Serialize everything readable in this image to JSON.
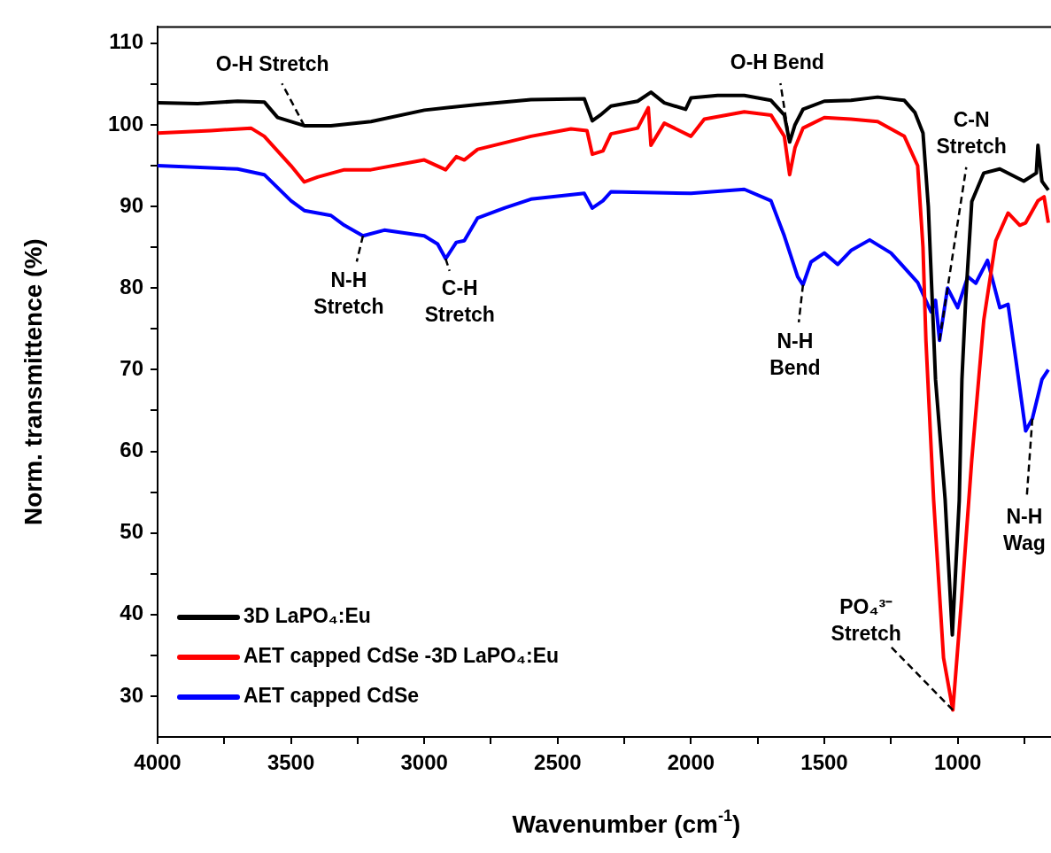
{
  "chart_data": {
    "type": "line",
    "xlabel": "Wavenumber (cm$^{-1}$)",
    "ylabel": "Norm. transmittence (%)",
    "xlim": [
      4000,
      650
    ],
    "xticks": [
      4000,
      {
        "value": 3750,
        "label": null
      },
      3500,
      {
        "value": 3250,
        "label": null
      },
      3000,
      {
        "value": 2750,
        "label": null
      },
      2500,
      {
        "value": 2250,
        "label": null
      },
      2000,
      {
        "value": 1750,
        "label": null
      },
      1500,
      {
        "value": 1250,
        "label": null
      },
      1000,
      {
        "value": 750,
        "label": null
      }
    ],
    "ylim": [
      25,
      112
    ],
    "yticks": [
      30,
      {
        "value": 35,
        "label": null
      },
      40,
      {
        "value": 45,
        "label": null
      },
      50,
      {
        "value": 55,
        "label": null
      },
      60,
      {
        "value": 65,
        "label": null
      },
      70,
      {
        "value": 75,
        "label": null
      },
      80,
      {
        "value": 85,
        "label": null
      },
      90,
      {
        "value": 95,
        "label": null
      },
      100,
      {
        "value": 105,
        "label": null
      },
      110
    ],
    "grid": false,
    "legend": "bottom left",
    "marker": "none",
    "line_style": "solid",
    "series": [
      {
        "name": "3D LaPO₄:Eu",
        "color": "#000000",
        "x": [
          4000,
          3850,
          3700,
          3600,
          3550,
          3450,
          3350,
          3200,
          3000,
          2800,
          2600,
          2400,
          2370,
          2340,
          2300,
          2200,
          2150,
          2100,
          2020,
          2000,
          1900,
          1800,
          1700,
          1650,
          1630,
          1610,
          1580,
          1500,
          1400,
          1300,
          1200,
          1160,
          1130,
          1110,
          1083,
          1047,
          1020,
          994,
          984,
          970,
          947,
          902,
          842,
          752,
          705,
          699,
          684,
          660
        ],
        "values": [
          102.7,
          102.6,
          102.9,
          102.8,
          100.9,
          99.9,
          99.9,
          100.4,
          101.8,
          102.5,
          103.1,
          103.2,
          100.5,
          101.2,
          102.3,
          102.9,
          104,
          102.7,
          101.9,
          103.3,
          103.6,
          103.6,
          103,
          101.2,
          97.9,
          100,
          101.9,
          102.9,
          103,
          103.4,
          103,
          101.5,
          99,
          90,
          68.8,
          54.1,
          37.5,
          54,
          68.8,
          78.5,
          90.6,
          94.1,
          94.6,
          93.1,
          94.1,
          97.5,
          93.1,
          92
        ]
      },
      {
        "name": "AET capped CdSe -3D LaPO₄:Eu",
        "color": "#ff0000",
        "x": [
          4000,
          3800,
          3650,
          3600,
          3500,
          3450,
          3400,
          3300,
          3200,
          3000,
          2920,
          2880,
          2850,
          2800,
          2600,
          2450,
          2390,
          2370,
          2330,
          2300,
          2200,
          2160,
          2150,
          2100,
          2000,
          1950,
          1800,
          1700,
          1650,
          1630,
          1610,
          1580,
          1500,
          1400,
          1300,
          1200,
          1150,
          1130,
          1119,
          1090,
          1053,
          1018,
          985,
          947,
          902,
          857,
          811,
          767,
          745,
          699,
          676,
          660
        ],
        "values": [
          99,
          99.3,
          99.6,
          98.6,
          95,
          93,
          93.6,
          94.5,
          94.5,
          95.7,
          94.5,
          96.1,
          95.7,
          97,
          98.6,
          99.5,
          99.3,
          96.4,
          96.8,
          98.9,
          99.6,
          102.1,
          97.5,
          100.2,
          98.6,
          100.7,
          101.6,
          101.2,
          98.6,
          93.9,
          97.2,
          99.6,
          100.9,
          100.7,
          100.4,
          98.6,
          95,
          85,
          73.6,
          54,
          34.7,
          28.3,
          42,
          59,
          76.1,
          85.8,
          89.2,
          87.7,
          88,
          90.7,
          91.2,
          88
        ]
      },
      {
        "name": "AET capped CdSe",
        "color": "#0000ff",
        "x": [
          4000,
          3700,
          3600,
          3500,
          3450,
          3350,
          3300,
          3230,
          3150,
          3000,
          2950,
          2920,
          2880,
          2850,
          2800,
          2700,
          2600,
          2400,
          2370,
          2330,
          2300,
          2000,
          1800,
          1700,
          1650,
          1600,
          1580,
          1550,
          1500,
          1450,
          1400,
          1330,
          1250,
          1150,
          1100,
          1083,
          1068,
          1038,
          1000,
          962,
          932,
          888,
          842,
          811,
          782,
          745,
          720,
          684,
          660
        ],
        "values": [
          95,
          94.6,
          93.9,
          90.7,
          89.5,
          88.9,
          87.7,
          86.4,
          87.1,
          86.4,
          85.4,
          83.6,
          85.6,
          85.8,
          88.6,
          89.8,
          90.9,
          91.6,
          89.8,
          90.7,
          91.8,
          91.6,
          92.1,
          90.7,
          86.4,
          81.4,
          80.4,
          83.2,
          84.3,
          82.9,
          84.6,
          85.9,
          84.3,
          80.7,
          77.1,
          78.5,
          73.6,
          80,
          77.6,
          81.4,
          80.6,
          83.4,
          77.6,
          78,
          71.3,
          62.5,
          64,
          68.8,
          70
        ]
      }
    ],
    "annotations": [
      {
        "text": "O-H Stretch",
        "x": 3450,
        "y": 99.9
      },
      {
        "text": "N-H\nStretch",
        "x": 3230,
        "y": 86.4
      },
      {
        "text": "C-H\nStretch",
        "x": 2920,
        "y": 83.6
      },
      {
        "text": "O-H Bend",
        "x": 1630,
        "y": 97.9
      },
      {
        "text": "N-H\nBend",
        "x": 1580,
        "y": 80.4
      },
      {
        "text": "C-N\nStretch",
        "x": 1068,
        "y": 73.6
      },
      {
        "text": "N-H\nWag",
        "x": 720,
        "y": 64
      },
      {
        "text": "PO₄³⁻\nStretch",
        "x": 1018,
        "y": 28.3
      }
    ]
  }
}
